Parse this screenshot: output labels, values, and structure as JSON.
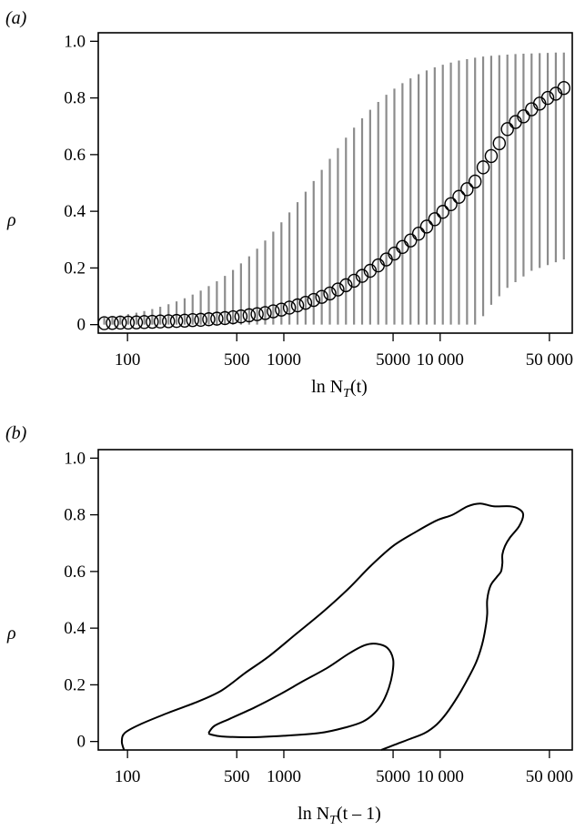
{
  "chart_data": [
    {
      "type": "scatter",
      "panel_label": "(a)",
      "xlabel": "ln N",
      "xlabel_sub": "T",
      "xlabel_arg": "(t)",
      "ylabel": "ρ",
      "x_scale": "log",
      "xlim": [
        65,
        70000
      ],
      "ylim": [
        -0.03,
        1.03
      ],
      "x_ticks": [
        100,
        500,
        1000,
        5000,
        10000,
        50000
      ],
      "x_tick_labels": [
        "100",
        "500",
        "1000",
        "5000",
        "10 000",
        "50 000"
      ],
      "y_ticks": [
        0,
        0.2,
        0.4,
        0.6,
        0.8,
        1.0
      ],
      "y_tick_labels": [
        "0",
        "0.2",
        "0.4",
        "0.6",
        "0.8",
        "1.0"
      ],
      "x": [
        71,
        80,
        90,
        101,
        114,
        128,
        144,
        162,
        183,
        206,
        232,
        261,
        294,
        331,
        373,
        420,
        473,
        532,
        600,
        675,
        760,
        856,
        965,
        1086,
        1224,
        1378,
        1552,
        1748,
        1969,
        2218,
        2497,
        2813,
        3168,
        3567,
        4018,
        4525,
        5096,
        5740,
        6464,
        7280,
        8199,
        9233,
        10400,
        11710,
        13190,
        14860,
        16730,
        18840,
        21220,
        23900,
        26920,
        30320,
        34140,
        38450,
        43310,
        48780,
        54930,
        61870
      ],
      "y": [
        0.005,
        0.006,
        0.007,
        0.007,
        0.008,
        0.009,
        0.01,
        0.011,
        0.012,
        0.013,
        0.014,
        0.016,
        0.017,
        0.019,
        0.021,
        0.023,
        0.026,
        0.029,
        0.033,
        0.037,
        0.041,
        0.047,
        0.053,
        0.06,
        0.068,
        0.077,
        0.087,
        0.098,
        0.11,
        0.124,
        0.139,
        0.155,
        0.172,
        0.19,
        0.209,
        0.23,
        0.251,
        0.274,
        0.297,
        0.321,
        0.346,
        0.372,
        0.398,
        0.425,
        0.451,
        0.478,
        0.505,
        0.555,
        0.595,
        0.64,
        0.69,
        0.715,
        0.735,
        0.76,
        0.78,
        0.8,
        0.815,
        0.835
      ],
      "y_low": [
        0.0,
        0.0,
        0.0,
        0.0,
        0.0,
        0.0,
        0.0,
        0.0,
        0.0,
        0.0,
        0.0,
        0.0,
        0.0,
        0.0,
        0.0,
        0.0,
        0.0,
        0.0,
        0.0,
        0.0,
        0.0,
        0.0,
        0.0,
        0.0,
        0.0,
        0.0,
        0.0,
        0.0,
        0.0,
        0.0,
        0.0,
        0.0,
        0.0,
        0.0,
        0.0,
        0.0,
        0.0,
        0.0,
        0.0,
        0.0,
        0.0,
        0.0,
        0.0,
        0.0,
        0.0,
        0.0,
        0.0,
        0.03,
        0.07,
        0.1,
        0.13,
        0.15,
        0.17,
        0.19,
        0.2,
        0.21,
        0.22,
        0.23
      ],
      "y_high": [
        0.025,
        0.028,
        0.032,
        0.037,
        0.042,
        0.048,
        0.055,
        0.063,
        0.072,
        0.082,
        0.093,
        0.106,
        0.12,
        0.136,
        0.153,
        0.172,
        0.193,
        0.216,
        0.241,
        0.268,
        0.297,
        0.328,
        0.361,
        0.396,
        0.432,
        0.469,
        0.507,
        0.546,
        0.585,
        0.623,
        0.66,
        0.695,
        0.728,
        0.758,
        0.786,
        0.811,
        0.833,
        0.852,
        0.869,
        0.884,
        0.897,
        0.908,
        0.917,
        0.925,
        0.932,
        0.937,
        0.942,
        0.946,
        0.949,
        0.951,
        0.953,
        0.955,
        0.956,
        0.957,
        0.958,
        0.959,
        0.96,
        0.96
      ]
    },
    {
      "type": "contour",
      "panel_label": "(b)",
      "xlabel": "ln N",
      "xlabel_sub": "T",
      "xlabel_arg": "(t – 1)",
      "ylabel": "ρ",
      "x_scale": "log",
      "xlim": [
        65,
        70000
      ],
      "ylim": [
        -0.03,
        1.03
      ],
      "x_ticks": [
        100,
        500,
        1000,
        5000,
        10000,
        50000
      ],
      "x_tick_labels": [
        "100",
        "500",
        "1000",
        "5000",
        "10 000",
        "50 000"
      ],
      "y_ticks": [
        0,
        0.2,
        0.4,
        0.6,
        0.8,
        1.0
      ],
      "y_tick_labels": [
        "0",
        "0.2",
        "0.4",
        "0.6",
        "0.8",
        "1.0"
      ],
      "contours": [
        {
          "level": "outer",
          "points": [
            [
              95,
              -0.03
            ],
            [
              92,
              0.0
            ],
            [
              96,
              0.03
            ],
            [
              120,
              0.06
            ],
            [
              180,
              0.1
            ],
            [
              280,
              0.14
            ],
            [
              400,
              0.18
            ],
            [
              560,
              0.24
            ],
            [
              800,
              0.3
            ],
            [
              1200,
              0.38
            ],
            [
              1800,
              0.46
            ],
            [
              2600,
              0.54
            ],
            [
              3600,
              0.62
            ],
            [
              5000,
              0.69
            ],
            [
              7000,
              0.74
            ],
            [
              9500,
              0.78
            ],
            [
              12000,
              0.8
            ],
            [
              15000,
              0.83
            ],
            [
              18000,
              0.84
            ],
            [
              22000,
              0.83
            ],
            [
              28000,
              0.83
            ],
            [
              32000,
              0.82
            ],
            [
              34000,
              0.8
            ],
            [
              32000,
              0.76
            ],
            [
              28000,
              0.72
            ],
            [
              26000,
              0.69
            ],
            [
              25000,
              0.66
            ],
            [
              25000,
              0.63
            ],
            [
              24500,
              0.6
            ],
            [
              23000,
              0.58
            ],
            [
              21000,
              0.55
            ],
            [
              20000,
              0.5
            ],
            [
              20000,
              0.45
            ],
            [
              19500,
              0.4
            ],
            [
              18500,
              0.34
            ],
            [
              17000,
              0.28
            ],
            [
              15000,
              0.22
            ],
            [
              13000,
              0.16
            ],
            [
              11000,
              0.1
            ],
            [
              9500,
              0.06
            ],
            [
              8000,
              0.03
            ],
            [
              6500,
              0.01
            ],
            [
              5200,
              -0.01
            ],
            [
              4200,
              -0.03
            ]
          ]
        },
        {
          "level": "inner",
          "points": [
            [
              330,
              0.03
            ],
            [
              360,
              0.055
            ],
            [
              450,
              0.08
            ],
            [
              650,
              0.12
            ],
            [
              900,
              0.16
            ],
            [
              1300,
              0.21
            ],
            [
              1900,
              0.26
            ],
            [
              2600,
              0.31
            ],
            [
              3300,
              0.34
            ],
            [
              3900,
              0.345
            ],
            [
              4600,
              0.33
            ],
            [
              5000,
              0.29
            ],
            [
              4950,
              0.24
            ],
            [
              4700,
              0.19
            ],
            [
              4300,
              0.14
            ],
            [
              3800,
              0.1
            ],
            [
              3200,
              0.07
            ],
            [
              2500,
              0.05
            ],
            [
              1700,
              0.03
            ],
            [
              1000,
              0.02
            ],
            [
              600,
              0.015
            ],
            [
              400,
              0.018
            ],
            [
              340,
              0.025
            ],
            [
              330,
              0.03
            ]
          ]
        }
      ]
    }
  ]
}
